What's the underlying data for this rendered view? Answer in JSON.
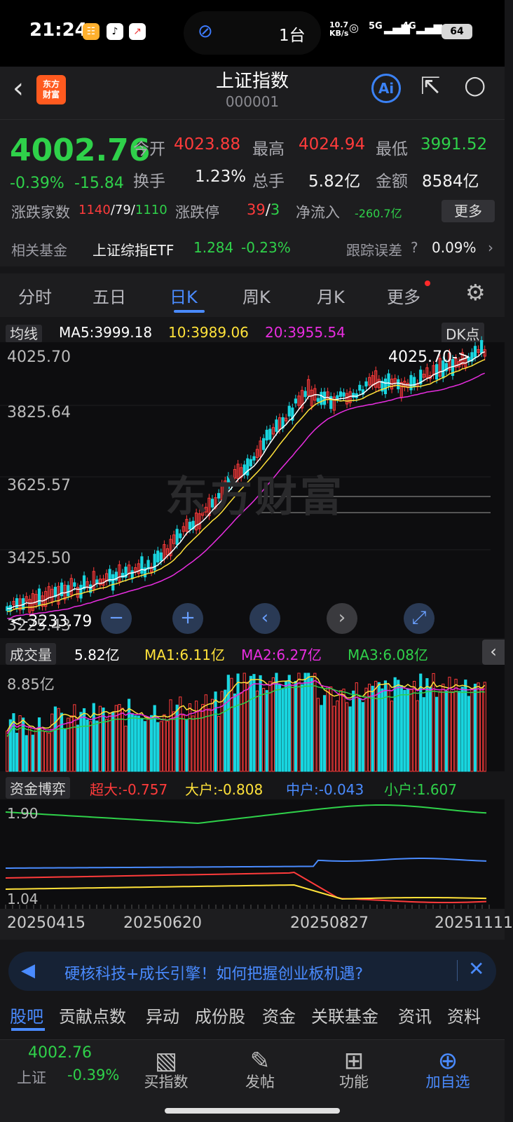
{
  "status": {
    "time": "21:24",
    "island_text": "1台",
    "net_speed_top": "10.7",
    "net_speed_bottom": "KB/s",
    "sig1": "5G",
    "sig2": "4G",
    "battery": "64"
  },
  "header": {
    "title": "上证指数",
    "code": "000001",
    "logo_line1": "东方",
    "logo_line2": "财富",
    "ai_label": "Ai"
  },
  "quote": {
    "price": "4002.76",
    "change_pct": "-0.39%",
    "change_abs": "-15.84",
    "open_label": "今开",
    "open": "4023.88",
    "high_label": "最高",
    "high": "4024.94",
    "low_label": "最低",
    "low": "3991.52",
    "turnover_label": "换手",
    "turnover": "1.23%",
    "volume_label": "总手",
    "volume": "5.82亿",
    "amount_label": "金额",
    "amount": "8584亿",
    "breadth_label": "涨跌家数",
    "breadth_up": "1140",
    "breadth_flat": "79",
    "breadth_down": "1110",
    "limit_label": "涨跌停",
    "limit_up": "39",
    "limit_down": "3",
    "netflow_label": "净流入",
    "netflow": "-260.7亿",
    "more": "更多"
  },
  "fund": {
    "label": "相关基金",
    "name": "上证综指ETF",
    "price": "1.284",
    "change": "-0.23%",
    "track_label": "跟踪误差",
    "track": "0.09%"
  },
  "tabs": [
    "分时",
    "五日",
    "日K",
    "周K",
    "月K",
    "更多"
  ],
  "kline": {
    "ma_toggle": "均线",
    "ma5": "MA5:3999.18",
    "ma10": "10:3989.06",
    "ma20": "20:3955.54",
    "dk": "DK点",
    "y_labels": [
      "4025.70",
      "3825.64",
      "3625.57",
      "3425.50",
      "3225.43"
    ],
    "max_marker": "4025.70->",
    "min_marker": "<-3233.79",
    "watermark": "东方财富"
  },
  "volume": {
    "toggle": "成交量",
    "value": "5.82亿",
    "ma1": "MA1:6.11亿",
    "ma2": "MA2:6.27亿",
    "ma3": "MA3:6.08亿",
    "y_label": "8.85亿"
  },
  "capital": {
    "toggle": "资金博弈",
    "super": "超大:-0.757",
    "large": "大户:-0.808",
    "mid": "中户:-0.043",
    "small": "小户:1.607",
    "y_top": "1.90",
    "y_bottom": "1.04"
  },
  "dates": [
    "20250415",
    "20250620",
    "20250827",
    "20251111"
  ],
  "colors": {
    "up": "#ff3b3b",
    "down": "#19d6e0",
    "ma5": "#ffffff",
    "ma10": "#ffe23a",
    "ma20": "#e82de0",
    "accent": "#4a8bff"
  },
  "banner": {
    "text": "硬核科技+成长引擎！如何把握创业板机遇?"
  },
  "bottom_tabs": [
    "股吧",
    "贡献点数",
    "异动",
    "成份股",
    "资金",
    "关联基金",
    "资讯",
    "资料"
  ],
  "dock": {
    "index_price": "4002.76",
    "index_name": "上证",
    "index_change": "-0.39%",
    "buy": "买指数",
    "post": "发帖",
    "func": "功能",
    "add": "加自选"
  }
}
